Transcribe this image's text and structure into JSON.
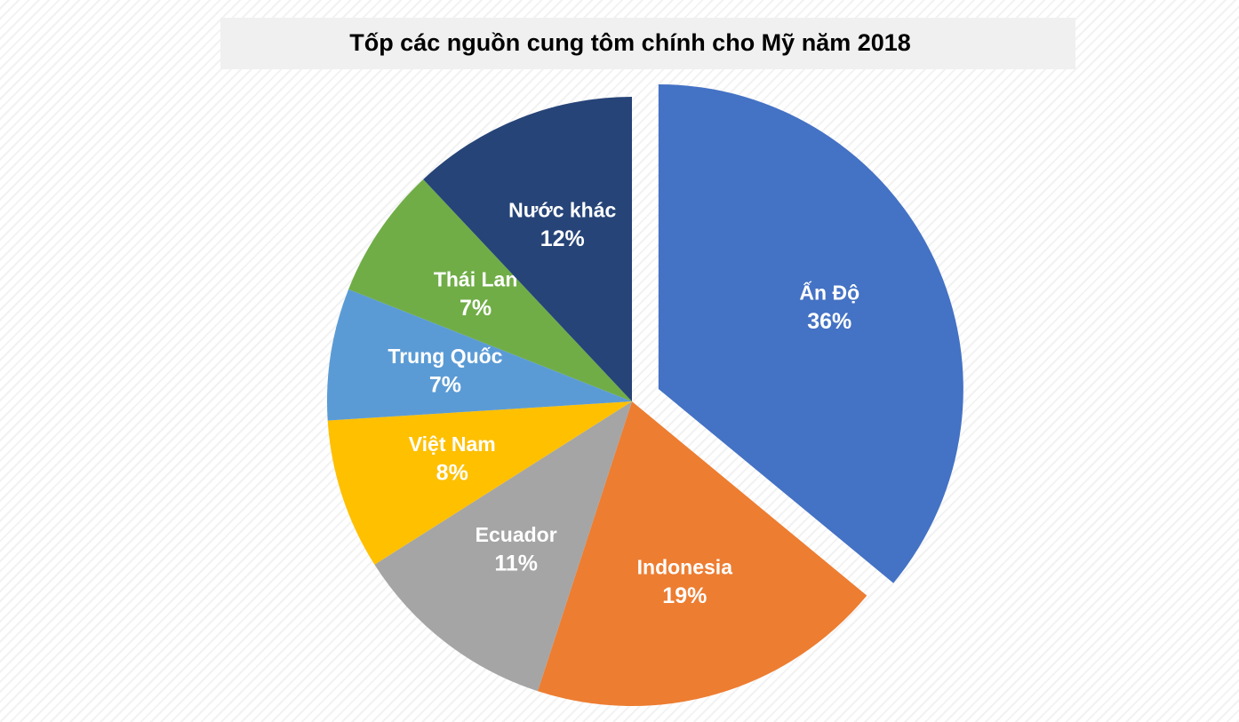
{
  "chart_data": {
    "type": "pie",
    "title": "Tốp các nguồn cung tôm chính cho Mỹ năm 2018",
    "categories": [
      "Ấn Độ",
      "Indonesia",
      "Ecuador",
      "Việt Nam",
      "Trung Quốc",
      "Thái Lan",
      "Nước khác"
    ],
    "values": [
      36,
      19,
      11,
      8,
      7,
      7,
      12
    ],
    "value_labels": [
      "36%",
      "19%",
      "11%",
      "8%",
      "7%",
      "7%",
      "12%"
    ],
    "colors": [
      "#4472c4",
      "#ed7d31",
      "#a5a5a5",
      "#ffc000",
      "#5b9bd5",
      "#70ad47",
      "#264478"
    ],
    "exploded_index": 0
  }
}
